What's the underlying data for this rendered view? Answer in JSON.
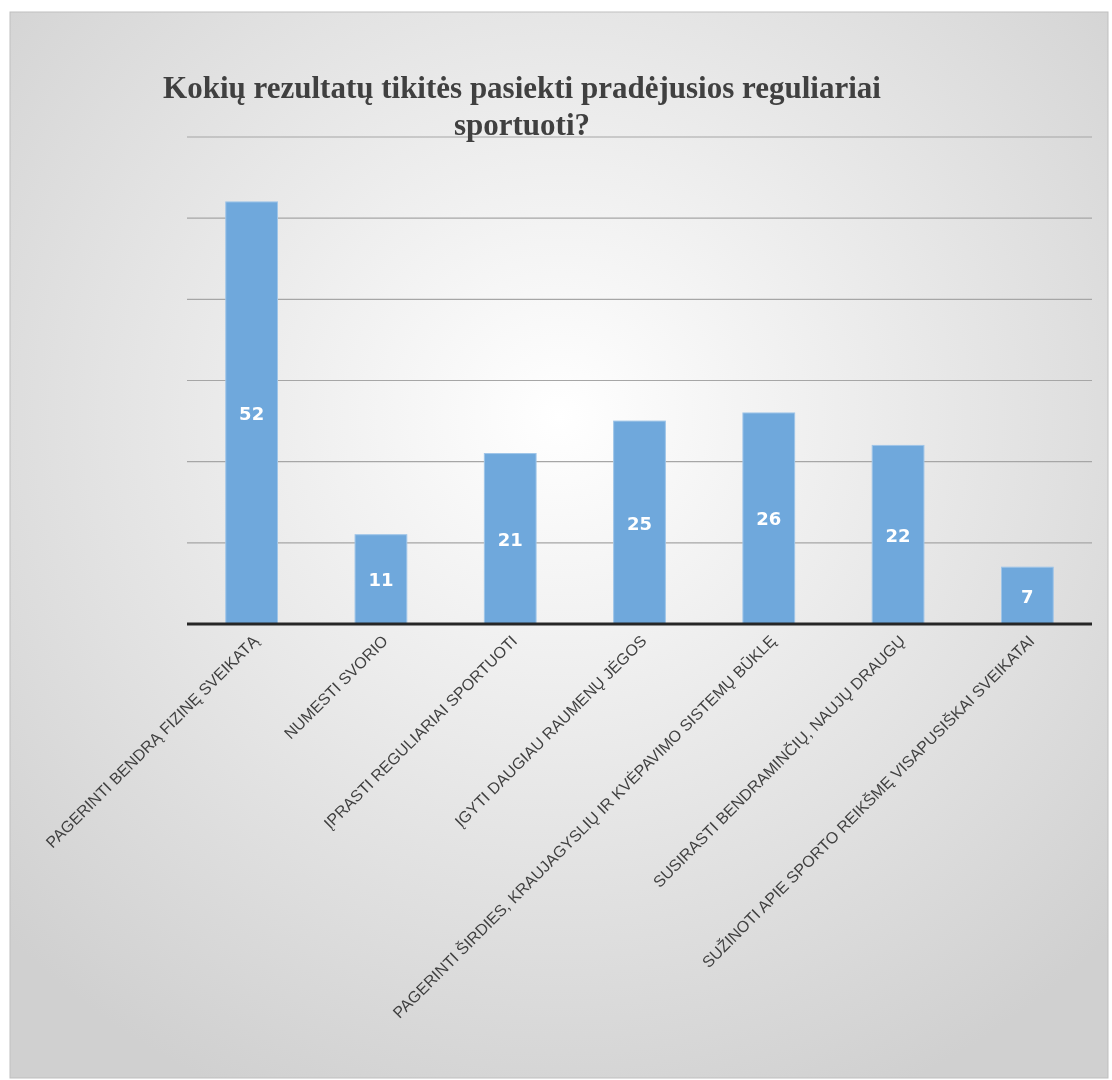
{
  "chart_data": {
    "type": "bar",
    "title": "Kokių rezultatų tikitės pasiekti pradėjusios reguliariai sportuoti?",
    "categories": [
      "PAGERINTI BENDRĄ FIZINĘ SVEIKATĄ",
      "NUMESTI SVORIO",
      "ĮPRASTI REGULIARIAI SPORTUOTI",
      "ĮGYTI DAUGIAU RAUMENŲ JĖGOS",
      "PAGERINTI ŠIRDIES, KRAUJAGYSLIŲ IR KVĖPAVIMO SISTEMŲ BŪKLĘ",
      "SUSIRASTI BENDRAMINČIŲ, NAUJŲ DRAUGŲ",
      "SUŽINOTI APIE SPORTO REIKŠMĘ VISAPUSIŠKAI SVEIKATAI"
    ],
    "values": [
      52,
      11,
      21,
      25,
      26,
      22,
      7
    ],
    "color": "#6fa8dc",
    "ylim": [
      0,
      60
    ],
    "yticks": [
      {
        "value": 0,
        "label": null
      },
      {
        "value": 10,
        "label": null
      },
      {
        "value": 20,
        "label": null
      },
      {
        "value": 30,
        "label": null
      },
      {
        "value": 40,
        "label": null
      },
      {
        "value": 50,
        "label": null
      },
      {
        "value": 60,
        "label": null
      }
    ],
    "grid": "y",
    "tick_labels": "x",
    "data_labels": true
  }
}
